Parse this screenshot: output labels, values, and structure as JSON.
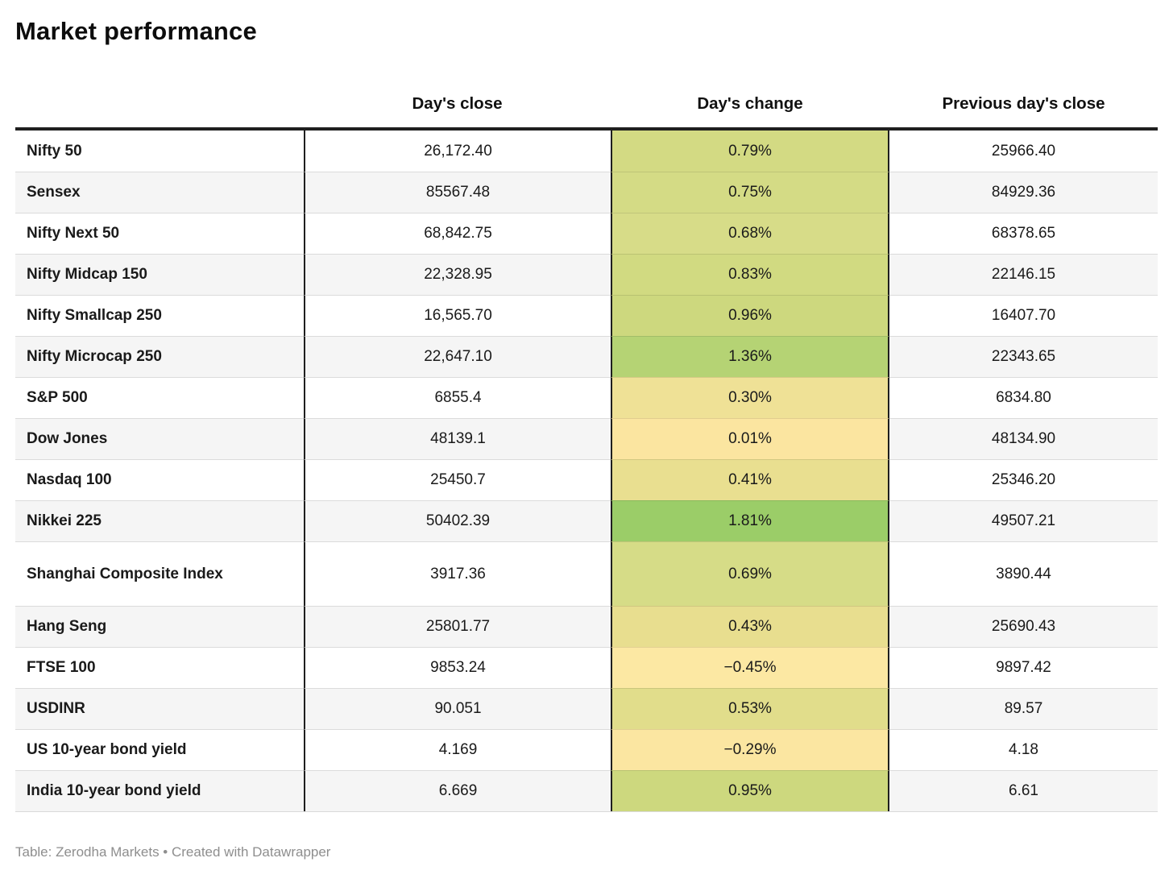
{
  "footer": {
    "text": "Table: Zerodha Markets • Created with Datawrapper"
  },
  "chart_data": {
    "type": "table",
    "title": "Market performance",
    "columns": [
      "",
      "Day's close",
      "Day's change",
      "Previous day's close"
    ],
    "legend": "none",
    "change_color_scale": {
      "negative_pale_yellow": "#fbe6a1",
      "mid_yellow_green": "#d3da83",
      "high_green": "#9bcd68"
    },
    "rows": [
      {
        "label": "Nifty 50",
        "close": "26,172.40",
        "change": "0.79%",
        "change_value": 0.79,
        "prev": "25966.40",
        "change_bg": "#d3da83"
      },
      {
        "label": "Sensex",
        "close": "85567.48",
        "change": "0.75%",
        "change_value": 0.75,
        "prev": "84929.36",
        "change_bg": "#d4db85"
      },
      {
        "label": "Nifty Next 50",
        "close": "68,842.75",
        "change": "0.68%",
        "change_value": 0.68,
        "prev": "68378.65",
        "change_bg": "#d7dc88"
      },
      {
        "label": "Nifty Midcap 150",
        "close": "22,328.95",
        "change": "0.83%",
        "change_value": 0.83,
        "prev": "22146.15",
        "change_bg": "#d1da81"
      },
      {
        "label": "Nifty Smallcap 250",
        "close": "16,565.70",
        "change": "0.96%",
        "change_value": 0.96,
        "prev": "16407.70",
        "change_bg": "#cdd87e"
      },
      {
        "label": "Nifty Microcap 250",
        "close": "22,647.10",
        "change": "1.36%",
        "change_value": 1.36,
        "prev": "22343.65",
        "change_bg": "#b5d374"
      },
      {
        "label": "S&P 500",
        "close": "6855.4",
        "change": "0.30%",
        "change_value": 0.3,
        "prev": "6834.80",
        "change_bg": "#efe196"
      },
      {
        "label": "Dow Jones",
        "close": "48139.1",
        "change": "0.01%",
        "change_value": 0.01,
        "prev": "48134.90",
        "change_bg": "#fbe5a0"
      },
      {
        "label": "Nasdaq 100",
        "close": "25450.7",
        "change": "0.41%",
        "change_value": 0.41,
        "prev": "25346.20",
        "change_bg": "#e9df90"
      },
      {
        "label": "Nikkei 225",
        "close": "50402.39",
        "change": "1.81%",
        "change_value": 1.81,
        "prev": "49507.21",
        "change_bg": "#9bcd68"
      },
      {
        "label": "Shanghai Composite Index",
        "close": "3917.36",
        "change": "0.69%",
        "change_value": 0.69,
        "prev": "3890.44",
        "change_bg": "#d6dc87",
        "tall": true
      },
      {
        "label": "Hang Seng",
        "close": "25801.77",
        "change": "0.43%",
        "change_value": 0.43,
        "prev": "25690.43",
        "change_bg": "#e8de8f"
      },
      {
        "label": "FTSE 100",
        "close": "9853.24",
        "change": "−0.45%",
        "change_value": -0.45,
        "prev": "9897.42",
        "change_bg": "#fce8a3"
      },
      {
        "label": "USDINR",
        "close": "90.051",
        "change": "0.53%",
        "change_value": 0.53,
        "prev": "89.57",
        "change_bg": "#e1dd8b"
      },
      {
        "label": "US 10-year bond yield",
        "close": "4.169",
        "change": "−0.29%",
        "change_value": -0.29,
        "prev": "4.18",
        "change_bg": "#fbe6a1"
      },
      {
        "label": "India 10-year bond yield",
        "close": "6.669",
        "change": "0.95%",
        "change_value": 0.95,
        "prev": "6.61",
        "change_bg": "#cdd87e"
      }
    ]
  }
}
